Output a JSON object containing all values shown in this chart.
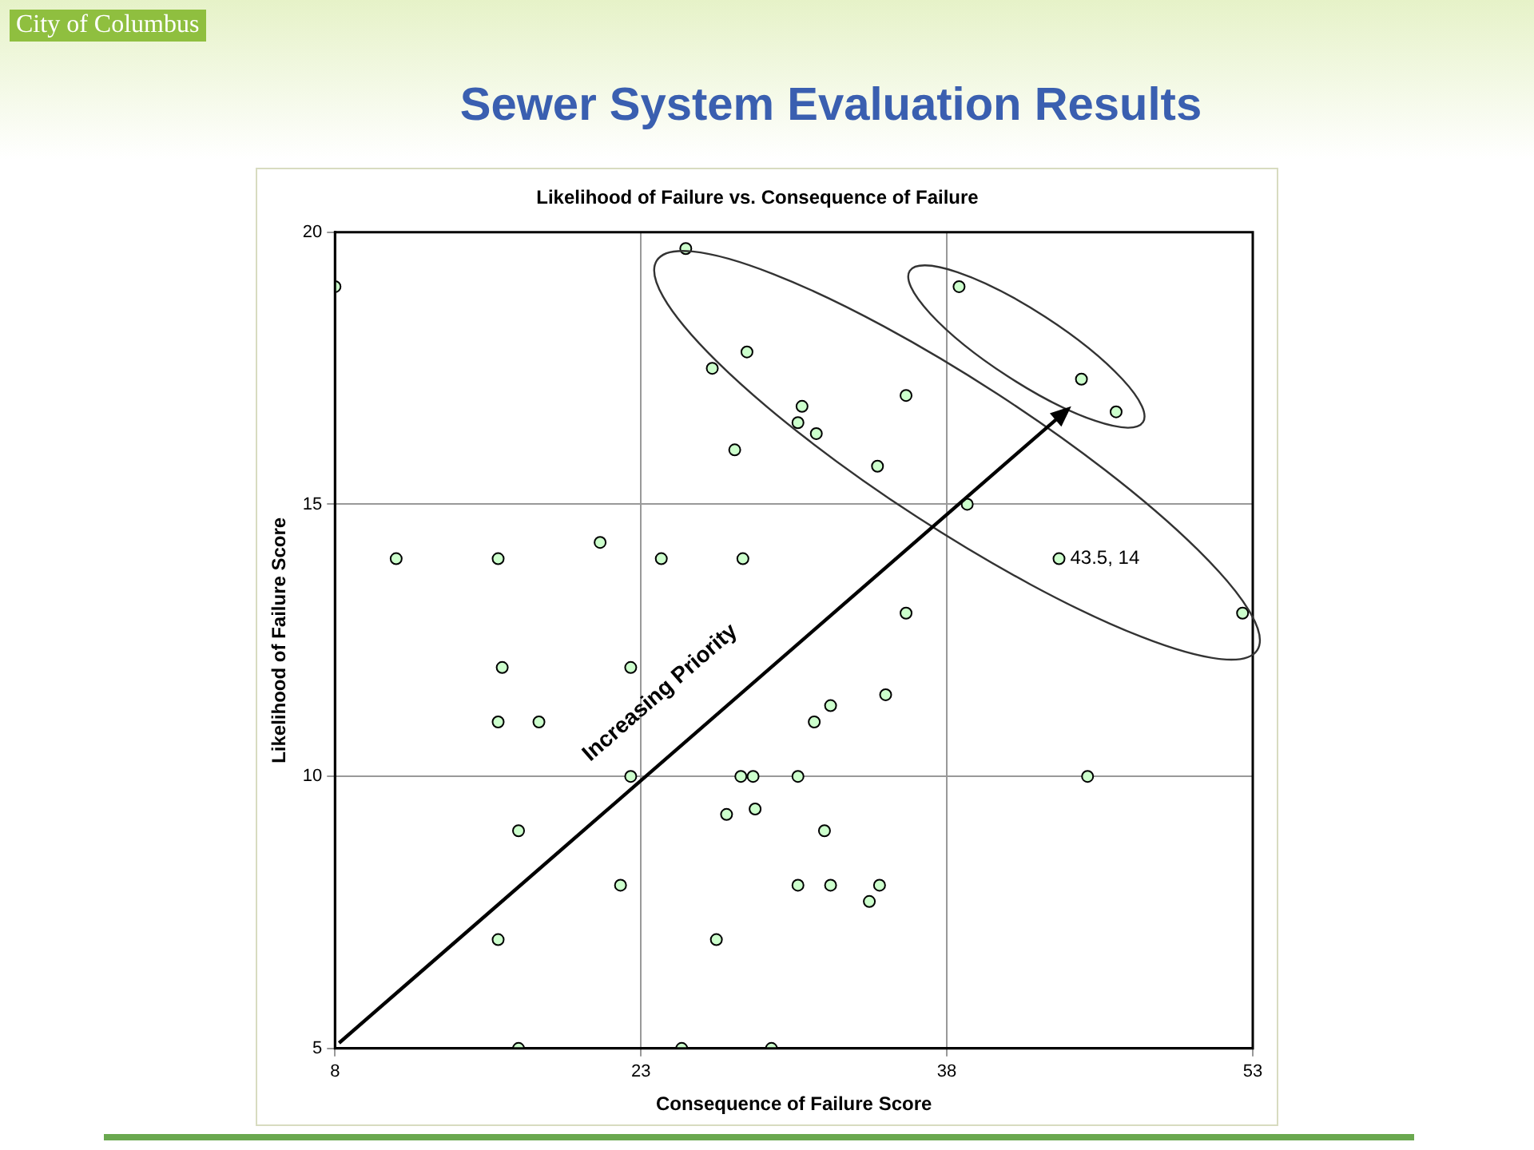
{
  "chart_data": {
    "type": "scatter",
    "title": "Sewer System Evaluation Results",
    "subtitle": "Likelihood of Failure vs. Consequence of Failure",
    "xlabel": "Consequence of Failure Score",
    "ylabel": "Likelihood of Failure Score",
    "annotations": [
      "City of Columbus",
      "Increasing Priority"
    ],
    "x": [
      8,
      11,
      16,
      21,
      24,
      28,
      25.2,
      26.5,
      28.2,
      27.6,
      30.9,
      30.7,
      31.6,
      36,
      34.6,
      38.6,
      44.6,
      46.3,
      39,
      43.5,
      52.5,
      36,
      16.2,
      16,
      18,
      22.5,
      22.5,
      17,
      22,
      16,
      17,
      25,
      26.7,
      27.2,
      27.9,
      28.5,
      28.6,
      29.4,
      30.7,
      31.5,
      32.3,
      35,
      32,
      30.7,
      32.3,
      34.7,
      34.2,
      44.9
    ],
    "values": [
      19,
      14,
      14,
      14.3,
      14,
      14,
      19.7,
      17.5,
      17.8,
      16,
      16.8,
      16.5,
      16.3,
      17,
      15.7,
      19,
      17.3,
      16.7,
      15,
      14,
      13,
      13,
      12,
      11,
      11,
      12,
      10,
      9,
      8,
      7,
      5,
      5,
      7,
      9.3,
      10,
      10,
      9.4,
      5,
      10,
      11,
      11.3,
      11.5,
      9,
      8,
      8,
      8,
      7.7,
      10
    ],
    "value_labels": [
      null,
      null,
      null,
      null,
      null,
      null,
      null,
      null,
      null,
      null,
      null,
      null,
      null,
      null,
      null,
      null,
      null,
      null,
      null,
      "43.5, 14",
      null,
      null,
      null,
      null,
      null,
      null,
      null,
      null,
      null,
      null,
      null,
      null,
      null,
      null,
      null,
      null,
      null,
      null,
      null,
      null,
      null,
      null,
      null,
      null,
      null,
      null,
      null,
      null
    ],
    "color": "#ccffcc",
    "marker": "circle",
    "grid": true,
    "legend": false,
    "xlim": [
      8,
      53
    ],
    "xticks": [
      8,
      23,
      38,
      53
    ],
    "ylim": [
      5,
      20
    ],
    "yticks": [
      5,
      10,
      15,
      20
    ]
  }
}
